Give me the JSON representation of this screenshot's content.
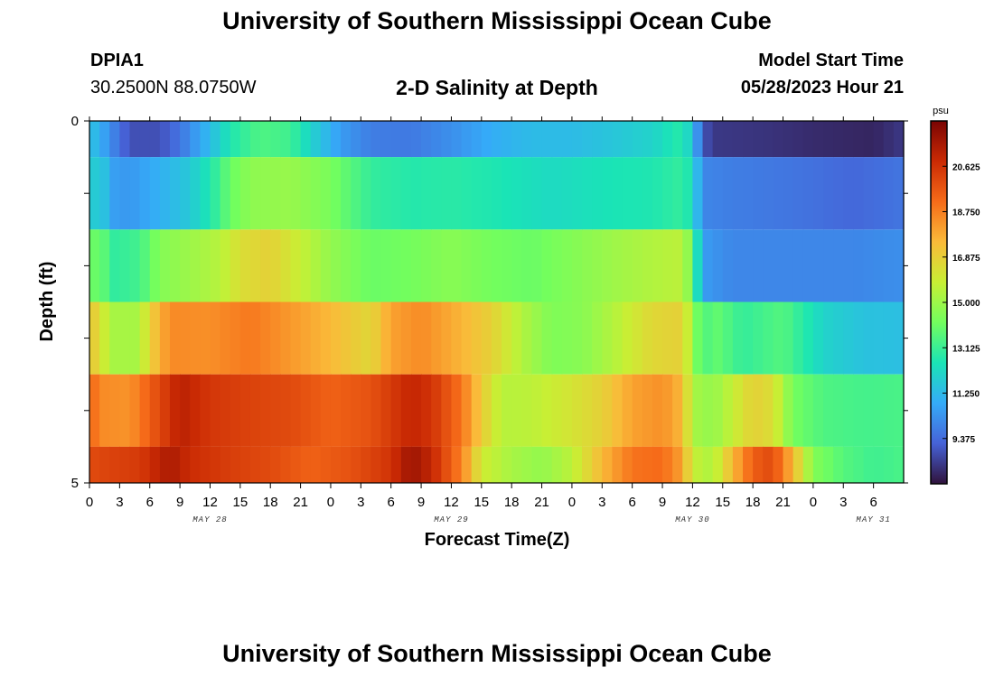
{
  "header": {
    "title": "University of Southern Mississippi Ocean Cube",
    "footer_title": "University of Southern Mississippi Ocean Cube",
    "station_id": "DPIA1",
    "station_location": "30.2500N  88.0750W",
    "subtitle": "2-D Salinity at Depth",
    "start_label": "Model Start Time",
    "start_value": "05/28/2023 Hour 21"
  },
  "colors": {
    "scale": [
      "#30123b",
      "#4662d7",
      "#35abf8",
      "#1ae4b6",
      "#72fe5e",
      "#c8ef34",
      "#faba39",
      "#f66b19",
      "#ca2a04",
      "#7a0403"
    ]
  },
  "chart_data": {
    "type": "heatmap",
    "xlabel": "Forecast Time(Z)",
    "ylabel": "Depth (ft)",
    "colorbar_unit": "psu",
    "colorbar_ticks": [
      "9.375",
      "11.250",
      "13.125",
      "15.000",
      "16.875",
      "18.750",
      "20.625"
    ],
    "colorbar_range": [
      7.5,
      22.5
    ],
    "x_hours_range": [
      0,
      81
    ],
    "x_tick_labels": [
      "0",
      "3",
      "6",
      "9",
      "12",
      "15",
      "18",
      "21",
      "0",
      "3",
      "6",
      "9",
      "12",
      "15",
      "18",
      "21",
      "0",
      "3",
      "6",
      "9",
      "12",
      "15",
      "18",
      "21",
      "0",
      "3",
      "6"
    ],
    "day_labels": [
      {
        "label": "MAY 28",
        "hour": 12
      },
      {
        "label": "MAY 29",
        "hour": 36
      },
      {
        "label": "MAY 30",
        "hour": 60
      },
      {
        "label": "MAY 31",
        "hour": 78
      }
    ],
    "y_tick_labels": [
      "0",
      "5"
    ],
    "y_range": [
      0,
      5
    ],
    "depth_bands": [
      {
        "top": 0.0,
        "bottom": 0.5,
        "knots": [
          [
            0,
            11.5
          ],
          [
            1,
            11.0
          ],
          [
            2,
            10.2
          ],
          [
            4,
            8.8
          ],
          [
            7,
            8.8
          ],
          [
            9,
            9.6
          ],
          [
            12,
            11.3
          ],
          [
            14,
            12.6
          ],
          [
            17,
            13.5
          ],
          [
            20,
            13.2
          ],
          [
            22,
            12.0
          ],
          [
            25,
            10.5
          ],
          [
            28,
            9.8
          ],
          [
            32,
            9.7
          ],
          [
            36,
            10.2
          ],
          [
            40,
            10.9
          ],
          [
            44,
            11.3
          ],
          [
            48,
            11.3
          ],
          [
            52,
            11.6
          ],
          [
            56,
            12.0
          ],
          [
            59,
            12.8
          ],
          [
            60,
            11.5
          ],
          [
            61,
            9.0
          ],
          [
            62,
            8.3
          ],
          [
            67,
            8.2
          ],
          [
            73,
            8.0
          ],
          [
            78,
            7.9
          ],
          [
            81,
            8.3
          ]
        ]
      },
      {
        "top": 0.5,
        "bottom": 1.5,
        "knots": [
          [
            0,
            11.2
          ],
          [
            1,
            12.3
          ],
          [
            2,
            10.6
          ],
          [
            4,
            10.4
          ],
          [
            6,
            10.8
          ],
          [
            8,
            11.2
          ],
          [
            10,
            11.7
          ],
          [
            12,
            12.6
          ],
          [
            14,
            14.0
          ],
          [
            16,
            14.7
          ],
          [
            20,
            14.9
          ],
          [
            24,
            14.3
          ],
          [
            28,
            13.0
          ],
          [
            32,
            12.7
          ],
          [
            36,
            12.8
          ],
          [
            40,
            12.6
          ],
          [
            46,
            12.2
          ],
          [
            52,
            12.5
          ],
          [
            56,
            12.6
          ],
          [
            59,
            13.0
          ],
          [
            60,
            12.3
          ],
          [
            61,
            10.0
          ],
          [
            64,
            9.8
          ],
          [
            70,
            9.6
          ],
          [
            76,
            9.3
          ],
          [
            81,
            9.6
          ]
        ]
      },
      {
        "top": 1.5,
        "bottom": 2.5,
        "knots": [
          [
            0,
            13.5
          ],
          [
            1,
            14.5
          ],
          [
            2,
            12.9
          ],
          [
            3,
            13.0
          ],
          [
            5,
            13.3
          ],
          [
            7,
            14.5
          ],
          [
            10,
            15.0
          ],
          [
            13,
            15.5
          ],
          [
            15,
            16.4
          ],
          [
            18,
            16.8
          ],
          [
            21,
            15.8
          ],
          [
            24,
            14.8
          ],
          [
            28,
            14.0
          ],
          [
            32,
            14.2
          ],
          [
            36,
            14.6
          ],
          [
            40,
            14.2
          ],
          [
            44,
            14.0
          ],
          [
            48,
            14.5
          ],
          [
            52,
            15.0
          ],
          [
            56,
            15.4
          ],
          [
            59,
            15.6
          ],
          [
            60,
            14.0
          ],
          [
            61,
            10.5
          ],
          [
            64,
            10.0
          ],
          [
            70,
            10.0
          ],
          [
            76,
            10.0
          ],
          [
            81,
            10.2
          ]
        ]
      },
      {
        "top": 2.5,
        "bottom": 3.5,
        "knots": [
          [
            0,
            17.0
          ],
          [
            1,
            16.6
          ],
          [
            2,
            15.2
          ],
          [
            5,
            15.2
          ],
          [
            6,
            16.8
          ],
          [
            8,
            18.5
          ],
          [
            12,
            18.4
          ],
          [
            16,
            18.9
          ],
          [
            20,
            18.2
          ],
          [
            24,
            17.5
          ],
          [
            28,
            16.6
          ],
          [
            30,
            18.0
          ],
          [
            33,
            18.5
          ],
          [
            37,
            17.6
          ],
          [
            40,
            16.8
          ],
          [
            43,
            15.4
          ],
          [
            46,
            14.4
          ],
          [
            49,
            14.6
          ],
          [
            52,
            15.4
          ],
          [
            56,
            16.6
          ],
          [
            59,
            16.8
          ],
          [
            60,
            15.0
          ],
          [
            61,
            13.2
          ],
          [
            62,
            14.0
          ],
          [
            65,
            13.0
          ],
          [
            69,
            13.6
          ],
          [
            73,
            12.0
          ],
          [
            77,
            11.5
          ],
          [
            81,
            11.4
          ]
        ]
      },
      {
        "top": 3.5,
        "bottom": 4.5,
        "knots": [
          [
            0,
            19.5
          ],
          [
            1,
            18.5
          ],
          [
            4,
            18.3
          ],
          [
            6,
            19.5
          ],
          [
            9,
            21.2
          ],
          [
            12,
            20.5
          ],
          [
            16,
            20.2
          ],
          [
            20,
            20.0
          ],
          [
            24,
            19.4
          ],
          [
            28,
            19.8
          ],
          [
            32,
            21.0
          ],
          [
            34,
            20.6
          ],
          [
            37,
            19.0
          ],
          [
            39,
            17.0
          ],
          [
            41,
            15.5
          ],
          [
            44,
            15.6
          ],
          [
            48,
            16.2
          ],
          [
            51,
            16.8
          ],
          [
            54,
            18.0
          ],
          [
            57,
            18.4
          ],
          [
            59,
            17.5
          ],
          [
            60,
            15.2
          ],
          [
            62,
            14.8
          ],
          [
            64,
            15.8
          ],
          [
            66,
            16.8
          ],
          [
            68,
            16.4
          ],
          [
            70,
            14.2
          ],
          [
            73,
            13.5
          ],
          [
            77,
            13.3
          ],
          [
            81,
            13.4
          ]
        ]
      },
      {
        "top": 4.5,
        "bottom": 5.0,
        "knots": [
          [
            0,
            20.0
          ],
          [
            2,
            20.2
          ],
          [
            5,
            20.4
          ],
          [
            8,
            21.5
          ],
          [
            10,
            20.8
          ],
          [
            14,
            20.3
          ],
          [
            18,
            20.0
          ],
          [
            22,
            19.4
          ],
          [
            26,
            19.8
          ],
          [
            30,
            20.6
          ],
          [
            32,
            21.8
          ],
          [
            34,
            21.0
          ],
          [
            37,
            18.7
          ],
          [
            39,
            16.0
          ],
          [
            42,
            15.2
          ],
          [
            45,
            14.8
          ],
          [
            48,
            15.6
          ],
          [
            51,
            17.5
          ],
          [
            54,
            19.0
          ],
          [
            57,
            19.2
          ],
          [
            59,
            18.0
          ],
          [
            60,
            15.8
          ],
          [
            62,
            15.3
          ],
          [
            64,
            17.5
          ],
          [
            66,
            19.5
          ],
          [
            68,
            20.0
          ],
          [
            70,
            17.5
          ],
          [
            72,
            14.5
          ],
          [
            75,
            13.6
          ],
          [
            78,
            13.2
          ],
          [
            81,
            13.4
          ]
        ]
      }
    ]
  }
}
